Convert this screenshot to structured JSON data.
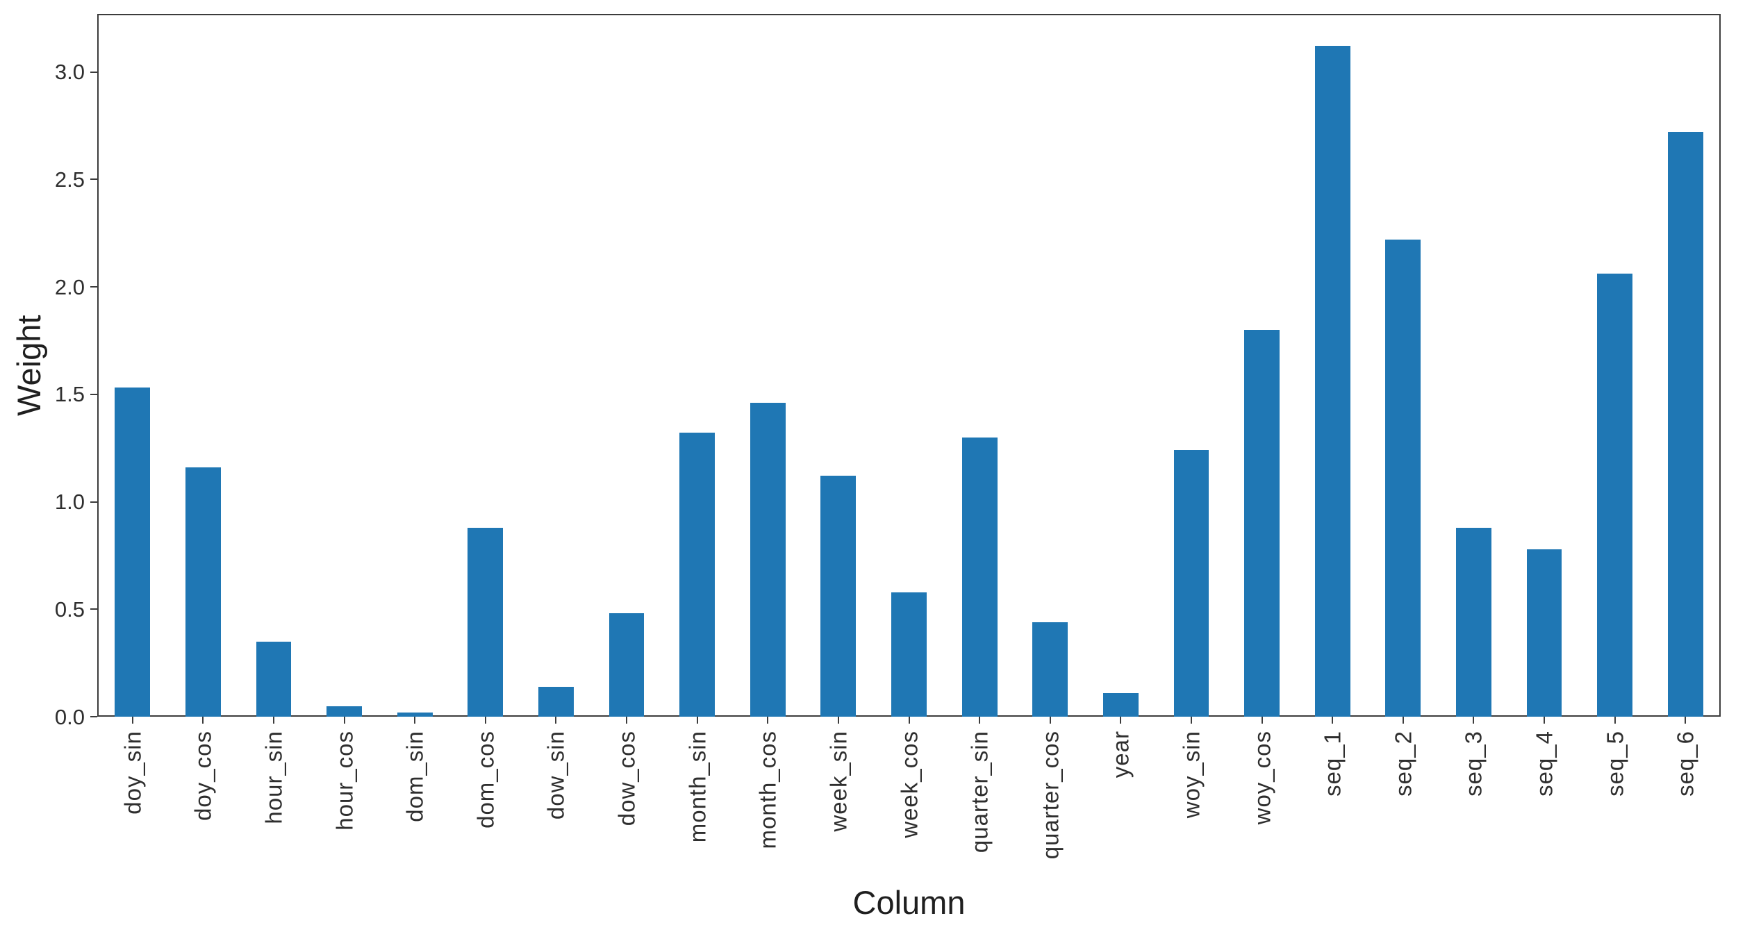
{
  "chart_data": {
    "type": "bar",
    "title": "",
    "xlabel": "Column",
    "ylabel": "Weight",
    "categories": [
      "doy_sin",
      "doy_cos",
      "hour_sin",
      "hour_cos",
      "dom_sin",
      "dom_cos",
      "dow_sin",
      "dow_cos",
      "month_sin",
      "month_cos",
      "week_sin",
      "week_cos",
      "quarter_sin",
      "quarter_cos",
      "year",
      "woy_sin",
      "woy_cos",
      "seq_1",
      "seq_2",
      "seq_3",
      "seq_4",
      "seq_5",
      "seq_6"
    ],
    "values": [
      1.53,
      1.16,
      0.35,
      0.05,
      0.02,
      0.88,
      0.14,
      0.48,
      1.32,
      1.46,
      1.12,
      0.58,
      1.3,
      0.44,
      0.11,
      1.24,
      1.8,
      3.12,
      2.22,
      0.88,
      0.78,
      2.06,
      2.72
    ],
    "series_name": "Weight",
    "ylim": [
      0,
      3.27
    ],
    "yticks": [
      0.0,
      0.5,
      1.0,
      1.5,
      2.0,
      2.5,
      3.0
    ],
    "ytick_labels": [
      "0.0",
      "0.5",
      "1.0",
      "1.5",
      "2.0",
      "2.5",
      "3.0"
    ],
    "xtick_rotation_deg": 90,
    "bar_width_fraction": 0.5,
    "grid": false,
    "legend_position": "none",
    "bar_color": "#1f77b4",
    "spine_color": "#3c3c3c",
    "text_color": "#2e2e2e"
  }
}
